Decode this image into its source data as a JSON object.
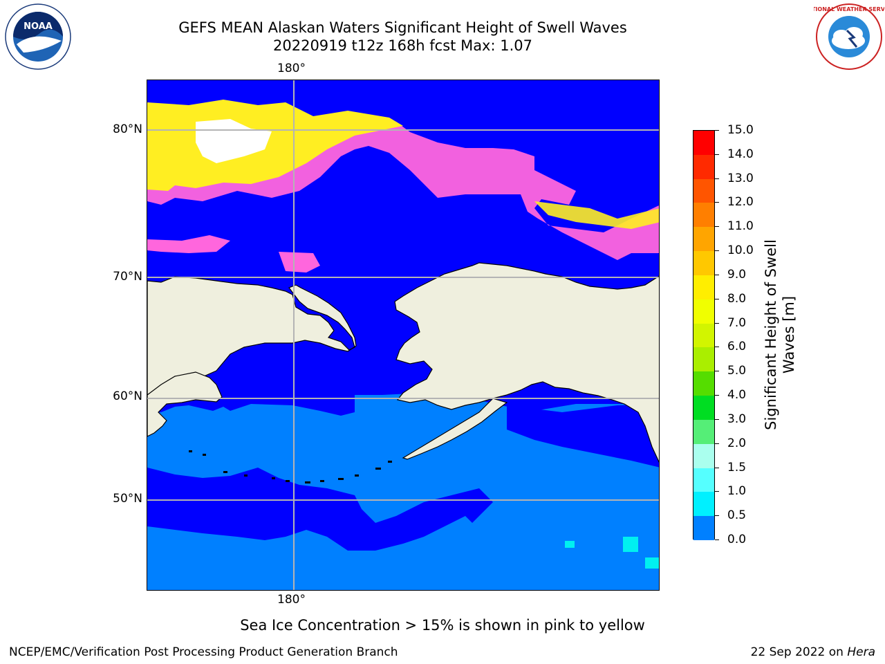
{
  "title": {
    "line1": "GEFS MEAN Alaskan Waters Significant Height of Swell Waves",
    "line2": "20220919 t12z 168h fcst   Max: 1.07"
  },
  "map": {
    "top_lon_label": "180°",
    "bottom_lon_label": "180°",
    "lat_labels": [
      "80°N",
      "70°N",
      "60°N",
      "50°N"
    ],
    "colors": {
      "ocean_low": "#0000ff",
      "ocean_mid": "#0080ff",
      "ocean_cyan": "#00f0f0",
      "land": "#efefde",
      "ice_pink": "#ff66dd",
      "ice_yellow": "#ffee22",
      "ice_white": "#ffffff",
      "grid": "#b4b4b4"
    }
  },
  "colorbar": {
    "label_line1": "Significant Height of Swell",
    "label_line2": "Waves [m]",
    "ticks": [
      "15.0",
      "14.0",
      "13.0",
      "12.0",
      "11.0",
      "10.0",
      "9.0",
      "8.0",
      "7.0",
      "6.0",
      "5.0",
      "4.0",
      "3.0",
      "2.0",
      "1.5",
      "1.0",
      "0.5",
      "0.0"
    ],
    "colors": [
      "#ff0000",
      "#ff2a00",
      "#ff5500",
      "#ff7f00",
      "#ffa500",
      "#ffc800",
      "#ffee00",
      "#f0ff00",
      "#d2f500",
      "#aaee00",
      "#55dd00",
      "#00dd22",
      "#55ee77",
      "#aaffee",
      "#55ffff",
      "#00f0ff",
      "#0080ff",
      "#0000ff"
    ]
  },
  "ice_note": "Sea Ice Concentration > 15% is shown in pink to yellow",
  "footer": {
    "left": "NCEP/EMC/Verification Post Processing Product Generation Branch",
    "right_date": "22 Sep 2022 on ",
    "right_host": "Hera"
  },
  "logos": {
    "noaa_text": "NOAA",
    "nws_text": "NATIONAL WEATHER SERVICE"
  }
}
